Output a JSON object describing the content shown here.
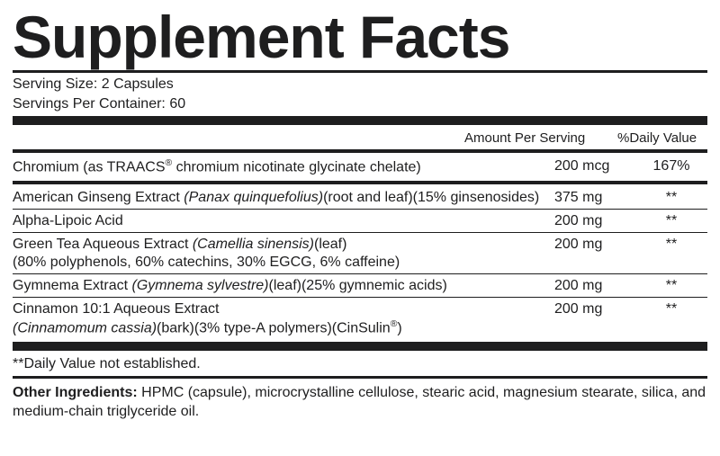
{
  "title": "Supplement Facts",
  "serving_size_label": "Serving Size:",
  "serving_size_value": "2 Capsules",
  "servings_per_container_label": "Servings Per Container:",
  "servings_per_container_value": "60",
  "amount_header": "Amount Per Serving",
  "dv_header": "%Daily Value",
  "rows": [
    {
      "name_html": "Chromium (as TRAACS<sup>®</sup> chromium nicotinate glycinate chelate)",
      "amount": "200 mcg",
      "dv": "167%"
    },
    {
      "name_html": "American Ginseng Extract <span class=\"italic\">(Panax quinquefolius)</span>(root and leaf)(15% ginsenosides)",
      "amount": "375 mg",
      "dv": "**"
    },
    {
      "name_html": "Alpha-Lipoic Acid",
      "amount": "200 mg",
      "dv": "**"
    },
    {
      "name_html": "Green Tea Aqueous Extract <span class=\"italic\">(Camellia sinensis)</span>(leaf)<br>(80% polyphenols, 60% catechins, 30% EGCG, 6% caffeine)",
      "amount": "200 mg",
      "dv": "**"
    },
    {
      "name_html": "Gymnema Extract <span class=\"italic\">(Gymnema sylvestre)</span>(leaf)(25% gymnemic acids)",
      "amount": "200 mg",
      "dv": "**"
    },
    {
      "name_html": "Cinnamon 10:1 Aqueous Extract<br><span class=\"italic\">(Cinnamomum cassia)</span>(bark)(3% type-A polymers)(CinSulin<sup>®</sup>)",
      "amount": "200 mg",
      "dv": "**"
    }
  ],
  "footnote": "**Daily Value not established.",
  "other_label": "Other Ingredients:",
  "other_text": "HPMC (capsule), microcrystalline cellulose, stearic acid, magnesium stearate, silica, and medium-chain triglyceride oil.",
  "colors": {
    "text": "#1e1e1f",
    "background": "#ffffff"
  }
}
